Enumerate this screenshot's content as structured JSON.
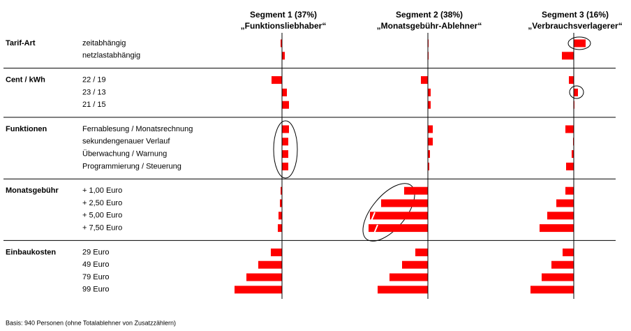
{
  "chart_data": {
    "type": "bar",
    "color": "#ff0000",
    "xlim": [
      -130,
      79
    ],
    "groups": [
      {
        "name": "Tarif-Art",
        "categories": [
          "zeitabhängig",
          "netzlastabhängig"
        ]
      },
      {
        "name": "Cent / kWh",
        "categories": [
          "22 / 19",
          "23 / 13",
          "21 / 15"
        ]
      },
      {
        "name": "Funktionen",
        "categories": [
          "Fernablesung / Monatsrechnung",
          "sekundengenauer Verlauf",
          "Überwachung / Warnung",
          "Programmierung / Steuerung"
        ]
      },
      {
        "name": "Monatsgebühr",
        "categories": [
          "+ 1,00 Euro",
          "+ 2,50 Euro",
          "+ 5,00 Euro",
          "+ 7,50 Euro"
        ]
      },
      {
        "name": "Einbaukosten",
        "categories": [
          "29 Euro",
          "49 Euro",
          "79 Euro",
          "99 Euro"
        ]
      }
    ],
    "series": [
      {
        "name": "Segment 1 (37%)",
        "label": "„Funktionsliebhaber“",
        "values": [
          -2,
          4,
          -15,
          7,
          10,
          10,
          9,
          9,
          9,
          -2,
          -3,
          -5,
          -6,
          -16,
          -34,
          -51,
          -68
        ]
      },
      {
        "name": "Segment 2 (38%)",
        "label": "„Monatsgebühr-Ablehner“",
        "values": [
          1,
          1,
          -10,
          4,
          4,
          7,
          7,
          3,
          2,
          -34,
          -67,
          -83,
          -85,
          -18,
          -37,
          -55,
          -72
        ]
      },
      {
        "name": "Segment 3 (16%)",
        "label": "„Verbrauchsverlagerer“",
        "values": [
          17,
          -17,
          -7,
          6,
          1,
          -12,
          -1,
          -3,
          -11,
          -12,
          -25,
          -38,
          -49,
          -16,
          -32,
          -46,
          -62
        ]
      }
    ],
    "footnote": "Basis: 940 Personen (ohne Totalablehner von Zusatzzählern)"
  }
}
